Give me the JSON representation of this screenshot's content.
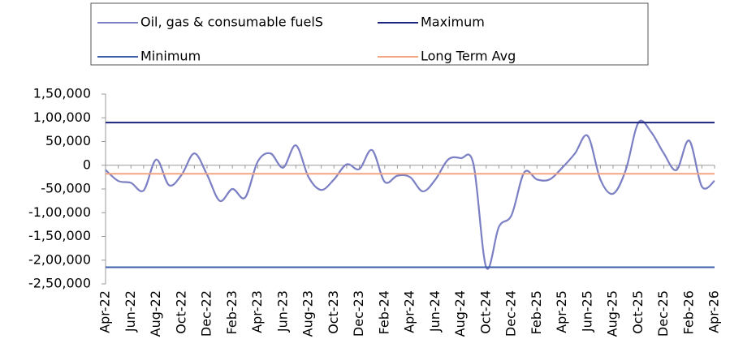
{
  "chart_data": {
    "type": "line",
    "categories": [
      "Apr-22",
      null,
      "Jun-22",
      null,
      "Aug-22",
      null,
      "Oct-22",
      null,
      "Dec-22",
      null,
      "Feb-23",
      null,
      "Apr-23",
      null,
      "Jun-23",
      null,
      "Aug-23",
      null,
      "Oct-23",
      null,
      "Dec-23",
      null,
      "Feb-24",
      null,
      "Apr-24",
      null,
      "Jun-24",
      null,
      "Aug-24",
      null,
      "Oct-24",
      null,
      "Dec-24",
      null,
      "Feb-25",
      null,
      "Apr-25",
      null,
      "Jun-25",
      null,
      "Aug-25",
      null,
      "Oct-25",
      null,
      "Dec-25",
      null,
      "Feb-26",
      null,
      "Apr-26"
    ],
    "series": [
      {
        "name": "Oil, gas &  consumable fuelS",
        "color": "#7b7fc4",
        "values": [
          -10000,
          -33000,
          -37000,
          -53000,
          12000,
          -42000,
          -20000,
          25000,
          -20000,
          -75000,
          -50000,
          -68000,
          8000,
          25000,
          -5000,
          42000,
          -25000,
          -52000,
          -30000,
          2000,
          -8000,
          32000,
          -35000,
          -22000,
          -25000,
          -55000,
          -30000,
          12000,
          15000,
          2000,
          -215000,
          -130000,
          -105000,
          -15000,
          -30000,
          -30000,
          -5000,
          25000,
          62000,
          -30000,
          -60000,
          -10000,
          90000,
          70000,
          25000,
          -10000,
          52000,
          -45000,
          -33000
        ]
      },
      {
        "name": "Maximum",
        "color": "#1a237e",
        "value": 90000
      },
      {
        "name": "Minimum",
        "color": "#3f5ea8",
        "value": -215000
      },
      {
        "name": "Long Term Avg",
        "color": "#f4a582",
        "value": -18000
      }
    ],
    "ylim": [
      -250000,
      150000
    ],
    "yticks": [
      {
        "value": -250000,
        "label": "-2,50,000"
      },
      {
        "value": -200000,
        "label": "-2,00,000"
      },
      {
        "value": -150000,
        "label": "-1,50,000"
      },
      {
        "value": -100000,
        "label": "-1,00,000"
      },
      {
        "value": -50000,
        "label": "-50,000"
      },
      0,
      {
        "value": 50000,
        "label": "50,000"
      },
      {
        "value": 100000,
        "label": "1,00,000"
      },
      {
        "value": 150000,
        "label": "1,50,000"
      }
    ]
  }
}
